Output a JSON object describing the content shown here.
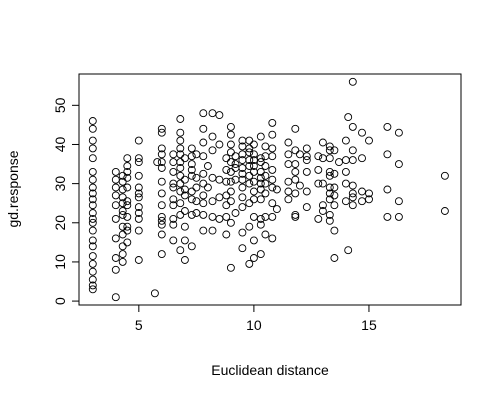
{
  "chart_data": {
    "type": "scatter",
    "title": "",
    "xlabel": "Euclidean distance",
    "ylabel": "gd.response",
    "xlim": [
      2.4,
      19.0
    ],
    "ylim": [
      -1.0,
      58.0
    ],
    "x_ticks": [
      5,
      10,
      15
    ],
    "y_ticks": [
      0,
      10,
      20,
      30,
      40,
      50
    ],
    "grid": false,
    "legend": "none",
    "marker": "open-circle",
    "colors": {
      "marker": "#000000",
      "axis": "#000000",
      "background": "#ffffff"
    },
    "series": [
      {
        "points": [
          [
            3.0,
            46.0
          ],
          [
            3.0,
            44.0
          ],
          [
            3.0,
            41.0
          ],
          [
            3.0,
            39.0
          ],
          [
            3.0,
            36.5
          ],
          [
            3.0,
            33.0
          ],
          [
            3.0,
            31.0
          ],
          [
            3.0,
            29.0
          ],
          [
            3.0,
            27.5
          ],
          [
            3.0,
            26.0
          ],
          [
            3.0,
            24.5
          ],
          [
            3.0,
            22.5
          ],
          [
            3.0,
            21.0
          ],
          [
            3.0,
            20.0
          ],
          [
            3.0,
            18.0
          ],
          [
            3.0,
            15.5
          ],
          [
            3.0,
            14.0
          ],
          [
            3.0,
            11.5
          ],
          [
            3.0,
            9.5
          ],
          [
            3.0,
            7.5
          ],
          [
            3.0,
            5.5
          ],
          [
            3.0,
            4.0
          ],
          [
            3.0,
            3.0
          ],
          [
            4.0,
            33.0
          ],
          [
            4.0,
            31.0
          ],
          [
            4.0,
            29.0
          ],
          [
            4.0,
            27.0
          ],
          [
            4.0,
            24.5
          ],
          [
            4.0,
            21.0
          ],
          [
            4.0,
            16.0
          ],
          [
            4.0,
            11.0
          ],
          [
            4.0,
            8.0
          ],
          [
            4.0,
            1.0
          ],
          [
            4.3,
            32.0
          ],
          [
            4.3,
            30.5
          ],
          [
            4.3,
            28.5
          ],
          [
            4.3,
            26.5
          ],
          [
            4.3,
            25.0
          ],
          [
            4.3,
            23.0
          ],
          [
            4.3,
            22.0
          ],
          [
            4.3,
            19.0
          ],
          [
            4.3,
            17.0
          ],
          [
            4.3,
            14.0
          ],
          [
            4.3,
            12.0
          ],
          [
            4.3,
            10.0
          ],
          [
            4.5,
            36.5
          ],
          [
            4.5,
            34.5
          ],
          [
            4.5,
            33.0
          ],
          [
            4.5,
            31.5
          ],
          [
            4.5,
            29.0
          ],
          [
            4.5,
            25.5
          ],
          [
            4.5,
            24.5
          ],
          [
            4.5,
            21.5
          ],
          [
            4.5,
            19.0
          ],
          [
            4.5,
            18.0
          ],
          [
            4.5,
            15.0
          ],
          [
            5.0,
            41.0
          ],
          [
            5.0,
            36.5
          ],
          [
            5.0,
            35.5
          ],
          [
            5.0,
            32.0
          ],
          [
            5.0,
            29.0
          ],
          [
            5.0,
            27.5
          ],
          [
            5.0,
            26.5
          ],
          [
            5.0,
            24.0
          ],
          [
            5.0,
            22.5
          ],
          [
            5.0,
            21.0
          ],
          [
            5.0,
            18.0
          ],
          [
            5.0,
            10.5
          ],
          [
            5.7,
            2.0
          ],
          [
            5.8,
            35.5
          ],
          [
            6.0,
            44.0
          ],
          [
            6.0,
            43.0
          ],
          [
            6.0,
            39.0
          ],
          [
            6.0,
            37.5
          ],
          [
            6.0,
            35.5
          ],
          [
            6.0,
            34.0
          ],
          [
            6.0,
            30.5
          ],
          [
            6.0,
            27.5
          ],
          [
            6.0,
            24.5
          ],
          [
            6.0,
            21.5
          ],
          [
            6.0,
            20.5
          ],
          [
            6.0,
            19.5
          ],
          [
            6.0,
            17.0
          ],
          [
            6.0,
            12.0
          ],
          [
            6.5,
            37.5
          ],
          [
            6.5,
            35.5
          ],
          [
            6.5,
            33.0
          ],
          [
            6.5,
            30.0
          ],
          [
            6.5,
            29.0
          ],
          [
            6.5,
            26.0
          ],
          [
            6.5,
            24.5
          ],
          [
            6.5,
            21.0
          ],
          [
            6.5,
            19.5
          ],
          [
            6.5,
            15.5
          ],
          [
            6.8,
            46.5
          ],
          [
            6.8,
            43.0
          ],
          [
            6.8,
            41.0
          ],
          [
            6.8,
            39.0
          ],
          [
            6.8,
            37.5
          ],
          [
            6.8,
            35.5
          ],
          [
            6.8,
            34.0
          ],
          [
            6.8,
            32.0
          ],
          [
            6.8,
            30.0
          ],
          [
            6.8,
            28.0
          ],
          [
            6.8,
            25.0
          ],
          [
            6.8,
            22.0
          ],
          [
            6.8,
            13.0
          ],
          [
            7.0,
            36.5
          ],
          [
            7.0,
            31.0
          ],
          [
            7.0,
            28.5
          ],
          [
            7.0,
            27.0
          ],
          [
            7.0,
            23.0
          ],
          [
            7.0,
            19.0
          ],
          [
            7.0,
            15.5
          ],
          [
            7.0,
            10.5
          ],
          [
            7.3,
            39.0
          ],
          [
            7.3,
            37.0
          ],
          [
            7.3,
            35.0
          ],
          [
            7.3,
            33.5
          ],
          [
            7.3,
            32.0
          ],
          [
            7.3,
            28.0
          ],
          [
            7.3,
            26.0
          ],
          [
            7.3,
            22.0
          ],
          [
            7.3,
            14.0
          ],
          [
            7.5,
            37.5
          ],
          [
            7.5,
            31.5
          ],
          [
            7.5,
            29.0
          ],
          [
            7.5,
            25.5
          ],
          [
            7.5,
            22.5
          ],
          [
            7.8,
            48.0
          ],
          [
            7.8,
            44.0
          ],
          [
            7.8,
            40.5
          ],
          [
            7.8,
            37.0
          ],
          [
            7.8,
            32.5
          ],
          [
            7.8,
            30.0
          ],
          [
            7.8,
            27.0
          ],
          [
            7.8,
            25.0
          ],
          [
            7.8,
            22.0
          ],
          [
            7.8,
            18.0
          ],
          [
            8.0,
            34.5
          ],
          [
            8.0,
            29.0
          ],
          [
            8.2,
            48.0
          ],
          [
            8.2,
            42.0
          ],
          [
            8.2,
            38.5
          ],
          [
            8.2,
            31.5
          ],
          [
            8.2,
            25.5
          ],
          [
            8.2,
            21.5
          ],
          [
            8.2,
            18.0
          ],
          [
            8.5,
            47.5
          ],
          [
            8.5,
            40.0
          ],
          [
            8.5,
            31.0
          ],
          [
            8.5,
            26.5
          ],
          [
            8.5,
            21.0
          ],
          [
            8.8,
            36.5
          ],
          [
            8.8,
            33.5
          ],
          [
            8.8,
            30.5
          ],
          [
            8.8,
            27.0
          ],
          [
            8.8,
            24.5
          ],
          [
            8.8,
            21.5
          ],
          [
            8.8,
            17.0
          ],
          [
            9.0,
            44.5
          ],
          [
            9.0,
            42.5
          ],
          [
            9.0,
            40.0
          ],
          [
            9.0,
            38.0
          ],
          [
            9.0,
            35.5
          ],
          [
            9.0,
            33.0
          ],
          [
            9.0,
            30.5
          ],
          [
            9.0,
            28.0
          ],
          [
            9.0,
            25.5
          ],
          [
            9.0,
            20.0
          ],
          [
            9.0,
            8.5
          ],
          [
            9.2,
            37.0
          ],
          [
            9.2,
            35.0
          ],
          [
            9.2,
            34.0
          ],
          [
            9.2,
            31.0
          ],
          [
            9.2,
            22.5
          ],
          [
            9.5,
            41.0
          ],
          [
            9.5,
            39.5
          ],
          [
            9.5,
            37.5
          ],
          [
            9.5,
            36.0
          ],
          [
            9.5,
            34.0
          ],
          [
            9.5,
            32.5
          ],
          [
            9.5,
            31.0
          ],
          [
            9.5,
            29.0
          ],
          [
            9.5,
            26.5
          ],
          [
            9.5,
            24.0
          ],
          [
            9.5,
            17.5
          ],
          [
            9.5,
            13.5
          ],
          [
            9.8,
            41.0
          ],
          [
            9.8,
            39.0
          ],
          [
            9.8,
            38.0
          ],
          [
            9.8,
            36.0
          ],
          [
            9.8,
            34.5
          ],
          [
            9.8,
            32.0
          ],
          [
            9.8,
            30.0
          ],
          [
            9.8,
            25.0
          ],
          [
            9.8,
            19.0
          ],
          [
            9.8,
            9.5
          ],
          [
            10.0,
            40.0
          ],
          [
            10.0,
            37.5
          ],
          [
            10.0,
            36.0
          ],
          [
            10.0,
            34.5
          ],
          [
            10.0,
            33.0
          ],
          [
            10.0,
            30.5
          ],
          [
            10.0,
            28.0
          ],
          [
            10.0,
            26.0
          ],
          [
            10.0,
            21.5
          ],
          [
            10.0,
            15.5
          ],
          [
            10.0,
            11.0
          ],
          [
            10.3,
            42.0
          ],
          [
            10.3,
            36.5
          ],
          [
            10.3,
            35.5
          ],
          [
            10.3,
            33.0
          ],
          [
            10.3,
            31.5
          ],
          [
            10.3,
            30.0
          ],
          [
            10.3,
            28.5
          ],
          [
            10.3,
            26.0
          ],
          [
            10.3,
            21.0
          ],
          [
            10.3,
            19.5
          ],
          [
            10.3,
            12.0
          ],
          [
            10.5,
            39.5
          ],
          [
            10.5,
            37.0
          ],
          [
            10.5,
            34.5
          ],
          [
            10.5,
            32.0
          ],
          [
            10.5,
            30.0
          ],
          [
            10.5,
            27.5
          ],
          [
            10.5,
            21.5
          ],
          [
            10.5,
            17.0
          ],
          [
            10.8,
            45.5
          ],
          [
            10.8,
            42.5
          ],
          [
            10.8,
            39.0
          ],
          [
            10.8,
            37.0
          ],
          [
            10.8,
            33.5
          ],
          [
            10.8,
            31.0
          ],
          [
            10.8,
            29.0
          ],
          [
            10.8,
            25.0
          ],
          [
            10.8,
            21.5
          ],
          [
            10.8,
            16.0
          ],
          [
            11.0,
            28.5
          ],
          [
            11.0,
            23.5
          ],
          [
            11.5,
            40.5
          ],
          [
            11.5,
            37.5
          ],
          [
            11.5,
            35.0
          ],
          [
            11.5,
            30.5
          ],
          [
            11.5,
            28.0
          ],
          [
            11.5,
            26.0
          ],
          [
            11.8,
            44.0
          ],
          [
            11.8,
            38.5
          ],
          [
            11.8,
            35.0
          ],
          [
            11.8,
            33.0
          ],
          [
            11.8,
            31.0
          ],
          [
            11.8,
            27.5
          ],
          [
            11.8,
            22.0
          ],
          [
            11.8,
            21.5
          ],
          [
            12.0,
            37.5
          ],
          [
            12.0,
            29.5
          ],
          [
            12.3,
            39.0
          ],
          [
            12.3,
            37.0
          ],
          [
            12.3,
            36.0
          ],
          [
            12.3,
            33.0
          ],
          [
            12.3,
            28.0
          ],
          [
            12.3,
            24.0
          ],
          [
            12.8,
            37.0
          ],
          [
            12.8,
            33.5
          ],
          [
            12.8,
            30.0
          ],
          [
            12.8,
            21.0
          ],
          [
            13.0,
            40.5
          ],
          [
            13.0,
            36.5
          ],
          [
            13.0,
            30.0
          ],
          [
            13.0,
            24.5
          ],
          [
            13.0,
            23.0
          ],
          [
            13.3,
            39.5
          ],
          [
            13.3,
            38.5
          ],
          [
            13.3,
            36.5
          ],
          [
            13.3,
            33.0
          ],
          [
            13.3,
            32.0
          ],
          [
            13.3,
            29.0
          ],
          [
            13.3,
            27.5
          ],
          [
            13.3,
            26.0
          ],
          [
            13.3,
            22.0
          ],
          [
            13.3,
            20.5
          ],
          [
            13.5,
            38.5
          ],
          [
            13.5,
            32.5
          ],
          [
            13.5,
            29.0
          ],
          [
            13.5,
            27.0
          ],
          [
            13.5,
            24.5
          ],
          [
            13.5,
            18.0
          ],
          [
            13.5,
            11.0
          ],
          [
            13.7,
            35.5
          ],
          [
            14.0,
            41.0
          ],
          [
            14.0,
            36.0
          ],
          [
            14.0,
            33.0
          ],
          [
            14.0,
            30.0
          ],
          [
            14.0,
            25.5
          ],
          [
            14.1,
            47.0
          ],
          [
            14.1,
            13.0
          ],
          [
            14.3,
            56.0
          ],
          [
            14.3,
            44.5
          ],
          [
            14.3,
            38.5
          ],
          [
            14.3,
            36.0
          ],
          [
            14.3,
            29.5
          ],
          [
            14.3,
            27.5
          ],
          [
            14.3,
            26.5
          ],
          [
            14.3,
            24.5
          ],
          [
            14.7,
            43.0
          ],
          [
            14.7,
            36.5
          ],
          [
            14.7,
            28.0
          ],
          [
            14.7,
            25.5
          ],
          [
            15.0,
            41.0
          ],
          [
            15.0,
            27.5
          ],
          [
            15.0,
            26.0
          ],
          [
            15.8,
            44.5
          ],
          [
            15.8,
            37.5
          ],
          [
            15.8,
            28.5
          ],
          [
            15.8,
            21.5
          ],
          [
            16.3,
            43.0
          ],
          [
            16.3,
            35.0
          ],
          [
            16.3,
            25.5
          ],
          [
            16.3,
            21.5
          ],
          [
            18.3,
            32.0
          ],
          [
            18.3,
            23.0
          ]
        ]
      }
    ]
  }
}
